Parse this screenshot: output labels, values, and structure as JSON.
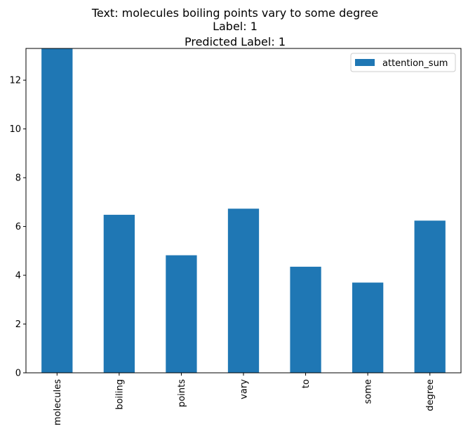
{
  "chart_data": {
    "type": "bar",
    "title_lines": [
      "Text: molecules boiling points vary to some degree",
      "Label: 1",
      "Predicted Label: 1"
    ],
    "categories": [
      "molecules",
      "boiling",
      "points",
      "vary",
      "to",
      "some",
      "degree"
    ],
    "series": [
      {
        "name": "attention_sum",
        "values": [
          13.3,
          6.48,
          4.82,
          6.73,
          4.35,
          3.7,
          6.24
        ]
      }
    ],
    "xlabel": "",
    "ylabel": "",
    "ylim": [
      0,
      13.3
    ],
    "yticks": [
      0,
      2,
      4,
      6,
      8,
      10,
      12
    ],
    "grid": false,
    "legend_position": "top-right",
    "bar_color": "#1f77b4"
  }
}
